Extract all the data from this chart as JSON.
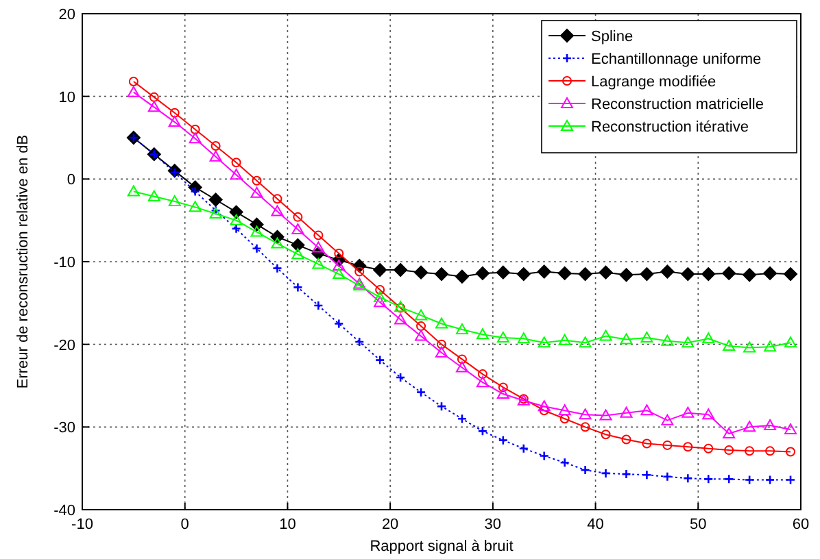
{
  "chart_data": {
    "type": "line",
    "xlabel": "Rapport signal à bruit",
    "ylabel": "Erreur de reconsruction relative en dB",
    "x": [
      -5,
      -3,
      -1,
      1,
      3,
      5,
      7,
      9,
      11,
      13,
      15,
      17,
      19,
      21,
      23,
      25,
      27,
      29,
      31,
      33,
      35,
      37,
      39,
      41,
      43,
      45,
      47,
      49,
      51,
      53,
      55,
      57,
      59
    ],
    "xlim": [
      -10,
      60
    ],
    "xticks": [
      -10,
      0,
      10,
      20,
      30,
      40,
      50,
      60
    ],
    "ylim": [
      -40,
      20
    ],
    "yticks": [
      -40,
      -30,
      -20,
      -10,
      0,
      10,
      20
    ],
    "grid": true,
    "legend": "top right",
    "series": [
      {
        "name": "Spline",
        "color": "#000000",
        "marker": "diamond",
        "line_style": "solid",
        "values": [
          5,
          3,
          1,
          -1,
          -2.5,
          -4,
          -5.5,
          -7,
          -8,
          -9,
          -9.8,
          -10.5,
          -11,
          -11,
          -11.3,
          -11.5,
          -11.8,
          -11.4,
          -11.3,
          -11.5,
          -11.2,
          -11.4,
          -11.5,
          -11.3,
          -11.6,
          -11.5,
          -11.2,
          -11.5,
          -11.5,
          -11.4,
          -11.6,
          -11.4,
          -11.5
        ]
      },
      {
        "name": "Echantillonnage uniforme",
        "color": "#0000ff",
        "marker": "cross",
        "line_style": "dotted",
        "values": [
          5,
          3,
          0.8,
          -1.5,
          -3.8,
          -6,
          -8.4,
          -10.8,
          -13.1,
          -15.3,
          -17.5,
          -19.7,
          -21.9,
          -24,
          -25.8,
          -27.5,
          -29,
          -30.5,
          -31.6,
          -32.6,
          -33.5,
          -34.3,
          -35.2,
          -35.6,
          -35.7,
          -35.8,
          -36,
          -36.2,
          -36.3,
          -36.3,
          -36.4,
          -36.4,
          -36.4
        ]
      },
      {
        "name": "Lagrange modifiée",
        "color": "#ff0000",
        "marker": "circle",
        "line_style": "solid",
        "values": [
          11.8,
          9.9,
          8,
          6,
          4,
          2,
          -0.2,
          -2.4,
          -4.6,
          -6.8,
          -9,
          -11.2,
          -13.4,
          -15.6,
          -17.8,
          -20,
          -21.8,
          -23.6,
          -25.2,
          -26.6,
          -28,
          -29,
          -30,
          -30.9,
          -31.5,
          -32,
          -32.2,
          -32.4,
          -32.6,
          -32.8,
          -32.9,
          -32.9,
          -33
        ]
      },
      {
        "name": "Reconstruction matricielle",
        "color": "#ff00ff",
        "marker": "triangle",
        "line_style": "solid",
        "values": [
          10.5,
          8.7,
          6.9,
          4.9,
          2.7,
          0.5,
          -1.7,
          -3.9,
          -6.1,
          -8.3,
          -10.5,
          -12.7,
          -14.9,
          -17,
          -19,
          -21,
          -22.8,
          -24.6,
          -26,
          -26.8,
          -27.5,
          -28,
          -28.5,
          -28.6,
          -28.3,
          -28,
          -29.2,
          -28.3,
          -28.5,
          -30.8,
          -30,
          -29.8,
          -30.3
        ]
      },
      {
        "name": "Reconstruction itérative",
        "color": "#00ff00",
        "marker": "triangle",
        "line_style": "solid",
        "values": [
          -1.5,
          -2.1,
          -2.7,
          -3.4,
          -4.2,
          -5,
          -6.4,
          -7.8,
          -9.1,
          -10.3,
          -11.5,
          -12.9,
          -14.3,
          -15.5,
          -16.5,
          -17.5,
          -18.2,
          -18.8,
          -19.2,
          -19.3,
          -19.8,
          -19.5,
          -19.8,
          -19,
          -19.4,
          -19.2,
          -19.6,
          -19.8,
          -19.3,
          -20.2,
          -20.4,
          -20.3,
          -19.8
        ]
      }
    ]
  }
}
